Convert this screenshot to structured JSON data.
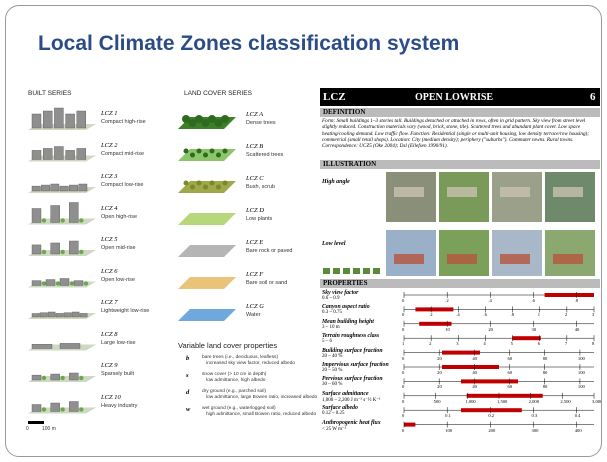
{
  "title": "Local Climate Zones classification system",
  "built_series": {
    "heading": "BUILT SERIES",
    "items": [
      {
        "code": "LCZ 1",
        "name": "Compact high-rise"
      },
      {
        "code": "LCZ 2",
        "name": "Compact mid-rise"
      },
      {
        "code": "LCZ 3",
        "name": "Compact low-rise"
      },
      {
        "code": "LCZ 4",
        "name": "Open high-rise"
      },
      {
        "code": "LCZ 5",
        "name": "Open mid-rise"
      },
      {
        "code": "LCZ 6",
        "name": "Open low-rise"
      },
      {
        "code": "LCZ 7",
        "name": "Lightweight low-rise"
      },
      {
        "code": "LCZ 8",
        "name": "Large low-rise"
      },
      {
        "code": "LCZ 9",
        "name": "Sparsely built"
      },
      {
        "code": "LCZ 10",
        "name": "Heavy industry"
      }
    ]
  },
  "land_cover_series": {
    "heading": "LAND COVER SERIES",
    "items": [
      {
        "code": "LCZ A",
        "name": "Dense trees"
      },
      {
        "code": "LCZ B",
        "name": "Scattered trees"
      },
      {
        "code": "LCZ C",
        "name": "Bush, scrub"
      },
      {
        "code": "LCZ D",
        "name": "Low plants"
      },
      {
        "code": "LCZ E",
        "name": "Bare rock or paved"
      },
      {
        "code": "LCZ F",
        "name": "Bare soil or sand"
      },
      {
        "code": "LCZ G",
        "name": "Water"
      }
    ]
  },
  "variable_properties": {
    "heading": "Variable land cover properties",
    "items": [
      {
        "code": "b",
        "label": "bare trees (i.e., deciduous, leafless)",
        "effect": "increased sky view factor, reduced albedo"
      },
      {
        "code": "s",
        "label": "snow cover (> 10 cm in depth)",
        "effect": "low admittance, high albedo"
      },
      {
        "code": "d",
        "label": "dry ground (e.g., parched soil)",
        "effect": "low admittance, large Bowen ratio, increased albedo"
      },
      {
        "code": "w",
        "label": "wet ground (e.g., waterlogged soil)",
        "effect": "high admittance, small Bowen ratio, reduced albedo"
      }
    ]
  },
  "scale_bar": [
    "0",
    "100 m"
  ],
  "sheet": {
    "label": "LCZ",
    "name": "OPEN LOWRISE",
    "number": 6,
    "definition_heading": "DEFINITION",
    "definition": "Form: Small buildings 1–3 stories tall. Buildings detached or attached in rows, often in grid pattern. Sky view from street level slightly reduced. Construction materials vary (wood, brick, stone, tile). Scattered trees and abundant plant cover. Low space heating/cooling demand. Low traffic flow. Function: Residential (single or multi-unit housing, low density terrace/row housing); commercial (small retail shops). Location: City (medium density); periphery (\"suburbs\"). Commuter towns. Rural towns. Correspondence: UCZ5 (Oke 2004); Dsl (Ellefsen 1990/91).",
    "illustration_heading": "ILLUSTRATION",
    "views": [
      "High angle",
      "Low level"
    ],
    "properties_heading": "PROPERTIES",
    "properties": [
      {
        "name": "Sky view factor",
        "range": "0.6 – 0.9",
        "scale": [
          "0",
          ".2",
          ".4",
          ".6",
          ".8"
        ]
      },
      {
        "name": "Canyon aspect ratio",
        "range": "0.3 – 0.75",
        "scale": [
          "0",
          ".2",
          ".4",
          ".6",
          ".8",
          "1",
          "2",
          "3"
        ]
      },
      {
        "name": "Mean building height",
        "range": "3 – 10 m",
        "scale": [
          "0",
          "10",
          "20",
          "30",
          "40"
        ]
      },
      {
        "name": "Terrain roughness class",
        "range": "5 – 6",
        "scale": [
          "1",
          "2",
          "3",
          "4",
          "5",
          "6",
          "7",
          "8"
        ]
      },
      {
        "name": "Building surface fraction",
        "range": "20 – 40 %",
        "scale": [
          "0",
          "20",
          "40",
          "60",
          "80",
          "100"
        ]
      },
      {
        "name": "Impervious surface fraction",
        "range": "20 – 50 %",
        "scale": [
          "0",
          "20",
          "40",
          "60",
          "80",
          "100"
        ]
      },
      {
        "name": "Pervious surface fraction",
        "range": "30 – 60 %",
        "scale": [
          "0",
          "20",
          "40",
          "60",
          "80",
          "100"
        ]
      },
      {
        "name": "Surface admittance",
        "range": "1,000 – 2,200 J m⁻² s⁻½ K⁻¹",
        "scale": [
          "0",
          "500",
          "1,000",
          "1,500",
          "2,000",
          "2,500",
          "3,000"
        ]
      },
      {
        "name": "Surface albedo",
        "range": "0.12 – 0.25",
        "scale": [
          "0",
          "0.1",
          "0.2",
          "0.3",
          "0.4"
        ]
      },
      {
        "name": "Anthropogenic heat flux",
        "range": "< 25 W m⁻²",
        "scale": [
          "0",
          "100",
          "200",
          "300",
          "400"
        ]
      }
    ]
  }
}
